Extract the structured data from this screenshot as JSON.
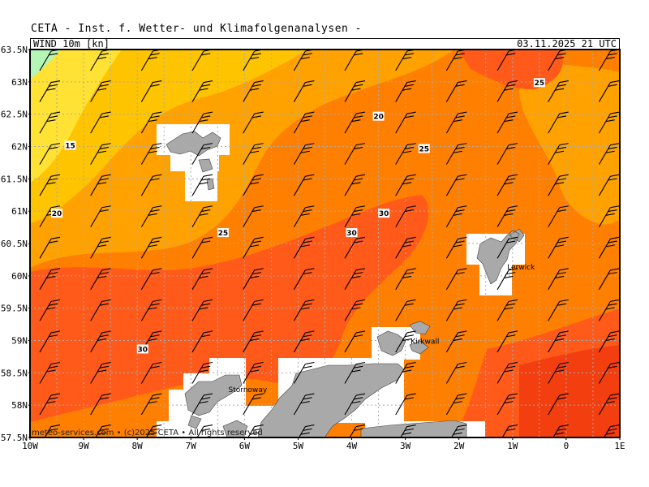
{
  "header": {
    "title": "CETA - Inst. f. Wetter- und Klimafolgenanalysen -",
    "product": "WIND 10m [kn]",
    "valid_time": "03.11.2025 21 UTC"
  },
  "map": {
    "lon_range": [
      -10,
      1
    ],
    "lat_range": [
      57.5,
      63.5
    ],
    "lon_labels": [
      "10W",
      "9W",
      "8W",
      "7W",
      "6W",
      "5W",
      "4W",
      "3W",
      "2W",
      "1W",
      "0",
      "1E"
    ],
    "lat_labels": [
      "63.5N",
      "63N",
      "62.5N",
      "62N",
      "61.5N",
      "61N",
      "60.5N",
      "60N",
      "59.5N",
      "59N",
      "58.5N",
      "58N",
      "57.5N"
    ],
    "colors": {
      "kn_10_15": "#ffe233",
      "kn_15_20": "#ffc400",
      "kn_20_25": "#ffa200",
      "kn_25_30": "#ff7f00",
      "kn_30_35": "#ff5a1a",
      "kn_35_40": "#f33e10",
      "kn_below_10": "#b5f5b5",
      "land": "#a9a9a9",
      "grid": "#aaaaaa"
    },
    "contour_labels": [
      {
        "text": "15",
        "lon": -9.25,
        "lat": 62.0
      },
      {
        "text": "20",
        "lon": -9.5,
        "lat": 60.95
      },
      {
        "text": "25",
        "lon": -6.4,
        "lat": 60.65
      },
      {
        "text": "20",
        "lon": -3.5,
        "lat": 62.45
      },
      {
        "text": "25",
        "lon": -2.65,
        "lat": 61.95
      },
      {
        "text": "25",
        "lon": -0.5,
        "lat": 62.97
      },
      {
        "text": "30",
        "lon": -3.4,
        "lat": 60.95
      },
      {
        "text": "30",
        "lon": -4.0,
        "lat": 60.65
      },
      {
        "text": "30",
        "lon": -7.9,
        "lat": 58.85
      }
    ],
    "places": [
      {
        "text": "Lerwick",
        "lon": -1.1,
        "lat": 60.1
      },
      {
        "text": "Kirkwall",
        "lon": -2.9,
        "lat": 58.95
      },
      {
        "text": "Stornoway",
        "lon": -6.3,
        "lat": 58.2
      }
    ],
    "wind_note": "barbs from west-southwest, mostly 25-35 kn"
  },
  "credit": "meteo-services.com • (c)2025 CETA • All rights reserved"
}
